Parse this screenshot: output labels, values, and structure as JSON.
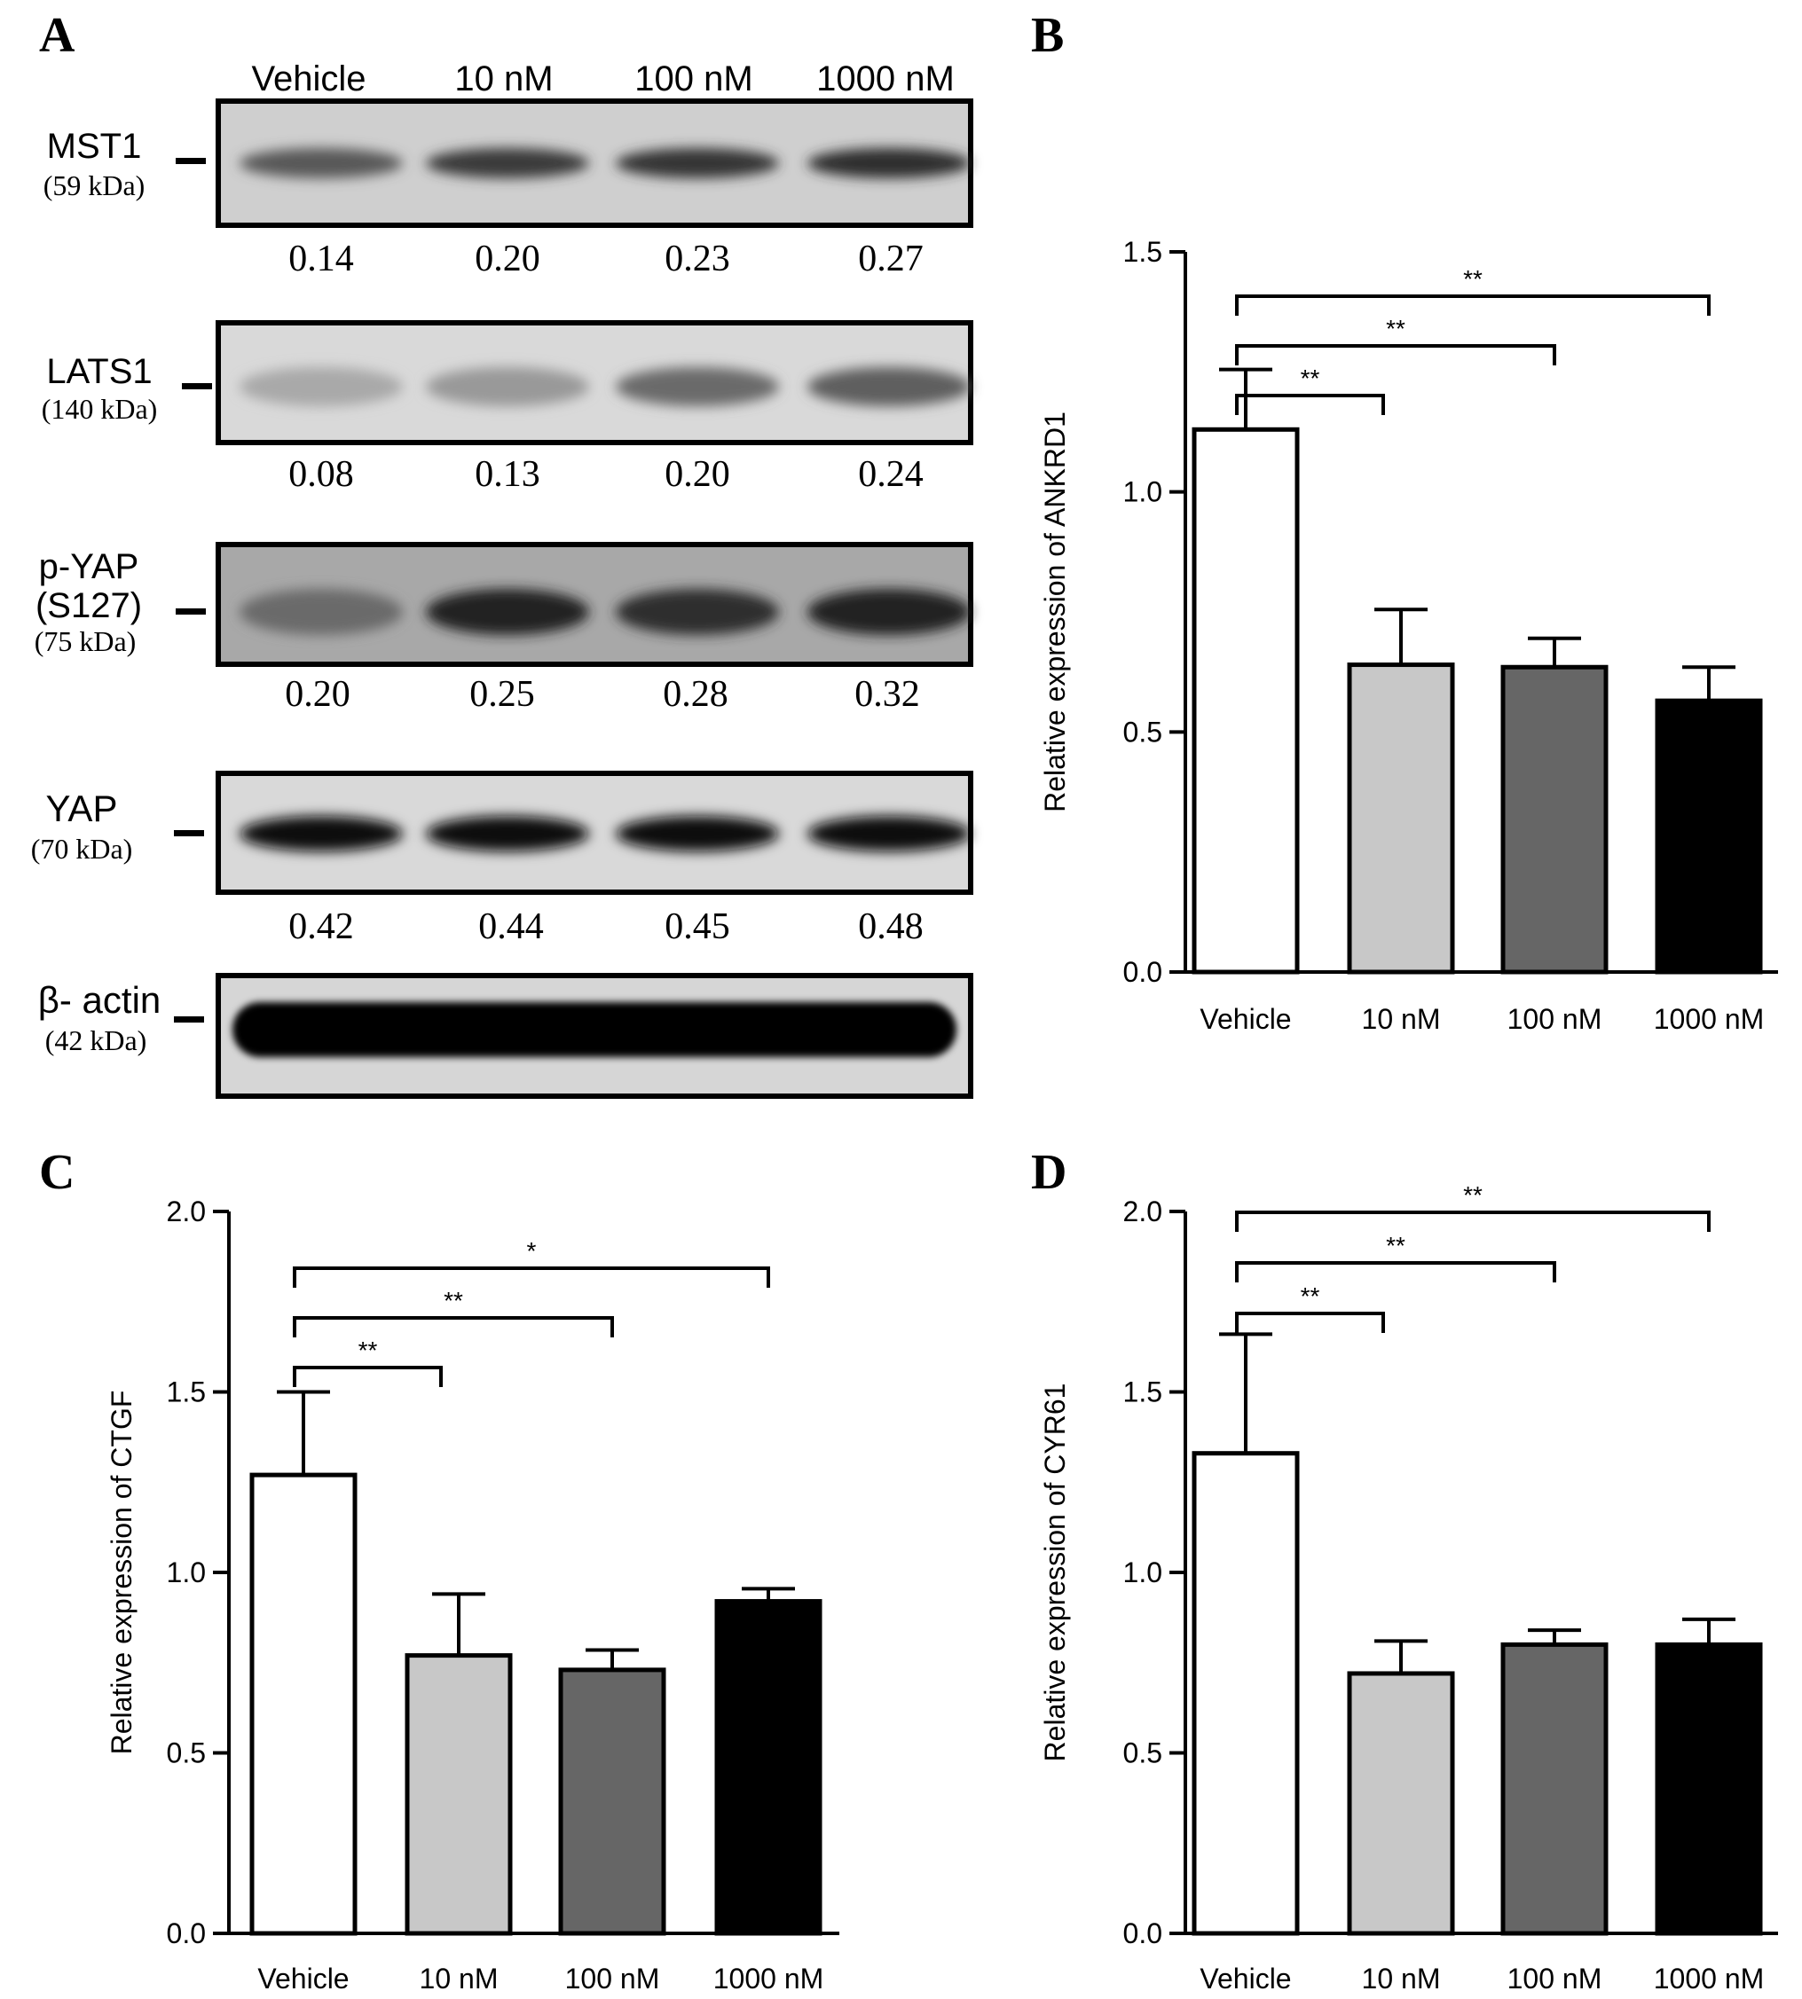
{
  "panel_letters": [
    "A",
    "B",
    "C",
    "D"
  ],
  "blot": {
    "lanes": [
      "Vehicle",
      "10 nM",
      "100 nM",
      "1000 nM"
    ],
    "rows": [
      {
        "label": "MST1",
        "kda": "(59 kDa)",
        "values": [
          "0.14",
          "0.20",
          "0.23",
          "0.27"
        ],
        "intensity": [
          0.62,
          0.75,
          0.78,
          0.8
        ]
      },
      {
        "label": "LATS1",
        "kda": "(140 kDa)",
        "values": [
          "0.08",
          "0.13",
          "0.20",
          "0.24"
        ],
        "intensity": [
          0.28,
          0.35,
          0.55,
          0.6
        ]
      },
      {
        "label": "p-YAP",
        "label2": "(S127)",
        "kda": "(75 kDa)",
        "values": [
          "0.20",
          "0.25",
          "0.28",
          "0.32"
        ],
        "intensity": [
          0.55,
          0.85,
          0.8,
          0.85
        ]
      },
      {
        "label": "YAP",
        "kda": "(70 kDa)",
        "values": [
          "0.42",
          "0.44",
          "0.45",
          "0.48"
        ],
        "intensity": [
          0.95,
          0.95,
          0.95,
          0.95
        ]
      },
      {
        "label": "β- actin",
        "kda": "(42 kDa)",
        "values": [],
        "intensity": [
          1,
          1,
          1,
          1
        ]
      }
    ]
  },
  "chart_data": [
    {
      "panel": "B",
      "type": "bar",
      "categories": [
        "Vehicle",
        "10 nM",
        "100 nM",
        "1000 nM"
      ],
      "values": [
        1.13,
        0.64,
        0.635,
        0.565
      ],
      "errors": [
        0.125,
        0.115,
        0.06,
        0.07
      ],
      "colors": [
        "#ffffff",
        "#c8c8c8",
        "#666666",
        "#000000"
      ],
      "ylabel": "Relative expression of ANKRD1",
      "ylim": [
        0,
        1.5
      ],
      "yticks": [
        "0.0",
        "0.5",
        "1.0",
        "1.5"
      ],
      "significance": [
        {
          "from": 0,
          "to": 1,
          "label": "**"
        },
        {
          "from": 0,
          "to": 2,
          "label": "**"
        },
        {
          "from": 0,
          "to": 3,
          "label": "**"
        }
      ]
    },
    {
      "panel": "C",
      "type": "bar",
      "categories": [
        "Vehicle",
        "10 nM",
        "100 nM",
        "1000 nM"
      ],
      "values": [
        1.27,
        0.77,
        0.73,
        0.92
      ],
      "errors": [
        0.23,
        0.17,
        0.055,
        0.035
      ],
      "colors": [
        "#ffffff",
        "#c8c8c8",
        "#666666",
        "#000000"
      ],
      "ylabel": "Relative expression of CTGF",
      "ylim": [
        0,
        2.0
      ],
      "yticks": [
        "0.0",
        "0.5",
        "1.0",
        "1.5",
        "2.0"
      ],
      "significance": [
        {
          "from": 0,
          "to": 1,
          "label": "**"
        },
        {
          "from": 0,
          "to": 2,
          "label": "**"
        },
        {
          "from": 0,
          "to": 3,
          "label": "*"
        }
      ]
    },
    {
      "panel": "D",
      "type": "bar",
      "categories": [
        "Vehicle",
        "10 nM",
        "100 nM",
        "1000 nM"
      ],
      "values": [
        1.33,
        0.72,
        0.8,
        0.8
      ],
      "errors": [
        0.33,
        0.09,
        0.04,
        0.07
      ],
      "colors": [
        "#ffffff",
        "#c8c8c8",
        "#666666",
        "#000000"
      ],
      "ylabel": "Relative expression of CYR61",
      "ylim": [
        0,
        2.0
      ],
      "yticks": [
        "0.0",
        "0.5",
        "1.0",
        "1.5",
        "2.0"
      ],
      "significance": [
        {
          "from": 0,
          "to": 1,
          "label": "**"
        },
        {
          "from": 0,
          "to": 2,
          "label": "**"
        },
        {
          "from": 0,
          "to": 3,
          "label": "**"
        }
      ]
    }
  ]
}
